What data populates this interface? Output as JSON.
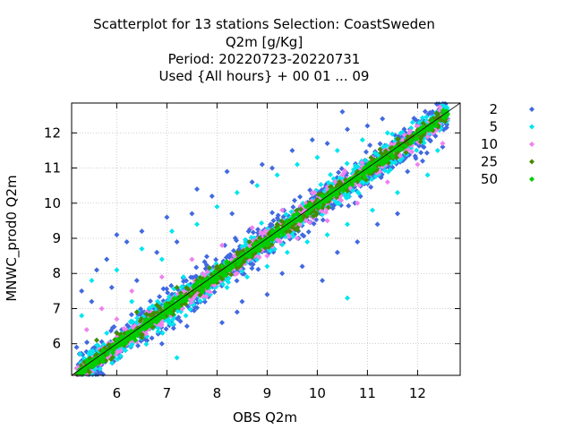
{
  "chart_data": {
    "type": "scatter",
    "title": [
      "Scatterplot for   13 stations Selection: CoastSweden",
      "Q2m [g/Kg]",
      "Period: 20220723-20220731",
      "Used {All hours} + 00 01 ... 09"
    ],
    "xlabel": "OBS Q2m",
    "ylabel": "MNWC_prod0 Q2m",
    "xlim": [
      5.1,
      12.85
    ],
    "ylim": [
      5.1,
      12.85
    ],
    "xticks": [
      6,
      7,
      8,
      9,
      10,
      11,
      12
    ],
    "yticks": [
      6,
      7,
      8,
      9,
      10,
      11,
      12
    ],
    "grid": true,
    "diagonal_line": true,
    "legend_position": "right outside",
    "series": [
      {
        "name": "2",
        "color": "#4169e1",
        "spread": 0.55,
        "points": [
          [
            5.2,
            5.9
          ],
          [
            5.3,
            7.5
          ],
          [
            5.5,
            7.2
          ],
          [
            5.6,
            8.1
          ],
          [
            5.8,
            8.4
          ],
          [
            5.9,
            7.6
          ],
          [
            6.0,
            9.1
          ],
          [
            6.1,
            6.4
          ],
          [
            6.2,
            8.9
          ],
          [
            6.4,
            7.8
          ],
          [
            6.5,
            9.2
          ],
          [
            6.6,
            6.1
          ],
          [
            6.8,
            8.6
          ],
          [
            7.0,
            9.6
          ],
          [
            7.2,
            8.9
          ],
          [
            7.4,
            6.5
          ],
          [
            7.5,
            9.7
          ],
          [
            7.6,
            10.4
          ],
          [
            7.8,
            8.1
          ],
          [
            7.9,
            10.2
          ],
          [
            8.1,
            6.6
          ],
          [
            8.2,
            10.9
          ],
          [
            8.3,
            9.7
          ],
          [
            8.5,
            7.2
          ],
          [
            8.7,
            10.6
          ],
          [
            8.9,
            11.1
          ],
          [
            9.0,
            7.4
          ],
          [
            9.1,
            11.0
          ],
          [
            9.3,
            8.0
          ],
          [
            9.5,
            11.5
          ],
          [
            9.7,
            8.2
          ],
          [
            9.9,
            11.8
          ],
          [
            10.1,
            7.8
          ],
          [
            10.2,
            11.7
          ],
          [
            10.4,
            8.6
          ],
          [
            10.6,
            12.1
          ],
          [
            10.8,
            8.9
          ],
          [
            11.0,
            12.2
          ],
          [
            11.2,
            9.4
          ],
          [
            11.3,
            12.4
          ],
          [
            11.6,
            9.7
          ],
          [
            11.8,
            10.9
          ],
          [
            12.1,
            11.2
          ],
          [
            12.3,
            12.6
          ],
          [
            12.5,
            11.6
          ],
          [
            12.6,
            12.4
          ],
          [
            6.9,
            6.0
          ],
          [
            8.4,
            6.9
          ],
          [
            5.7,
            5.4
          ],
          [
            10.5,
            12.6
          ]
        ]
      },
      {
        "name": "5",
        "color": "#00e5ee",
        "spread": 0.42,
        "points": [
          [
            5.3,
            6.8
          ],
          [
            5.5,
            7.8
          ],
          [
            5.8,
            6.3
          ],
          [
            6.0,
            8.1
          ],
          [
            6.3,
            7.2
          ],
          [
            6.5,
            8.7
          ],
          [
            6.7,
            6.5
          ],
          [
            6.9,
            8.4
          ],
          [
            7.1,
            9.2
          ],
          [
            7.3,
            7.0
          ],
          [
            7.6,
            9.4
          ],
          [
            7.8,
            7.4
          ],
          [
            8.0,
            9.9
          ],
          [
            8.2,
            7.6
          ],
          [
            8.4,
            10.3
          ],
          [
            8.6,
            7.9
          ],
          [
            8.8,
            10.5
          ],
          [
            9.0,
            8.2
          ],
          [
            9.2,
            10.8
          ],
          [
            9.4,
            8.6
          ],
          [
            9.6,
            11.1
          ],
          [
            9.8,
            8.9
          ],
          [
            10.0,
            11.3
          ],
          [
            10.2,
            9.1
          ],
          [
            10.4,
            11.5
          ],
          [
            10.6,
            9.4
          ],
          [
            10.9,
            11.8
          ],
          [
            11.1,
            9.8
          ],
          [
            11.4,
            12.0
          ],
          [
            11.6,
            10.3
          ],
          [
            11.9,
            12.3
          ],
          [
            12.2,
            10.8
          ],
          [
            12.4,
            11.5
          ],
          [
            10.6,
            7.3
          ],
          [
            7.2,
            5.6
          ]
        ]
      },
      {
        "name": "10",
        "color": "#ee82ee",
        "spread": 0.3,
        "points": [
          [
            5.4,
            6.4
          ],
          [
            5.7,
            7.0
          ],
          [
            6.0,
            6.7
          ],
          [
            6.3,
            7.5
          ],
          [
            6.6,
            6.9
          ],
          [
            6.9,
            7.9
          ],
          [
            7.2,
            7.2
          ],
          [
            7.5,
            8.4
          ],
          [
            7.8,
            7.6
          ],
          [
            8.1,
            8.8
          ],
          [
            8.4,
            8.0
          ],
          [
            8.7,
            9.3
          ],
          [
            9.0,
            8.5
          ],
          [
            9.3,
            9.8
          ],
          [
            9.6,
            9.0
          ],
          [
            9.9,
            10.3
          ],
          [
            10.2,
            9.5
          ],
          [
            10.5,
            10.8
          ],
          [
            10.8,
            10.0
          ],
          [
            11.1,
            11.3
          ],
          [
            11.4,
            10.6
          ],
          [
            11.7,
            11.8
          ],
          [
            12.0,
            11.1
          ],
          [
            12.3,
            12.2
          ],
          [
            12.5,
            11.7
          ]
        ]
      },
      {
        "name": "25",
        "color": "#458b00",
        "spread": 0.24,
        "points": [
          [
            5.6,
            6.1
          ],
          [
            6.0,
            6.3
          ],
          [
            6.4,
            6.9
          ],
          [
            6.8,
            7.1
          ],
          [
            7.2,
            7.6
          ],
          [
            7.6,
            7.8
          ],
          [
            8.0,
            8.2
          ],
          [
            8.4,
            8.6
          ],
          [
            8.8,
            8.9
          ],
          [
            9.2,
            9.4
          ],
          [
            9.6,
            9.7
          ],
          [
            10.0,
            10.1
          ],
          [
            10.4,
            10.5
          ],
          [
            10.8,
            10.8
          ],
          [
            11.2,
            11.2
          ],
          [
            11.6,
            11.5
          ]
        ]
      },
      {
        "name": "50",
        "color": "#00cd00",
        "spread": 0.16,
        "points": [
          [
            6.1,
            6.2
          ],
          [
            6.6,
            6.7
          ],
          [
            7.1,
            7.2
          ],
          [
            7.6,
            7.7
          ],
          [
            8.1,
            8.2
          ],
          [
            8.6,
            8.7
          ],
          [
            9.1,
            9.2
          ],
          [
            9.6,
            9.7
          ],
          [
            10.1,
            10.2
          ],
          [
            10.6,
            10.6
          ],
          [
            11.1,
            11.1
          ],
          [
            11.5,
            11.5
          ]
        ]
      }
    ]
  }
}
